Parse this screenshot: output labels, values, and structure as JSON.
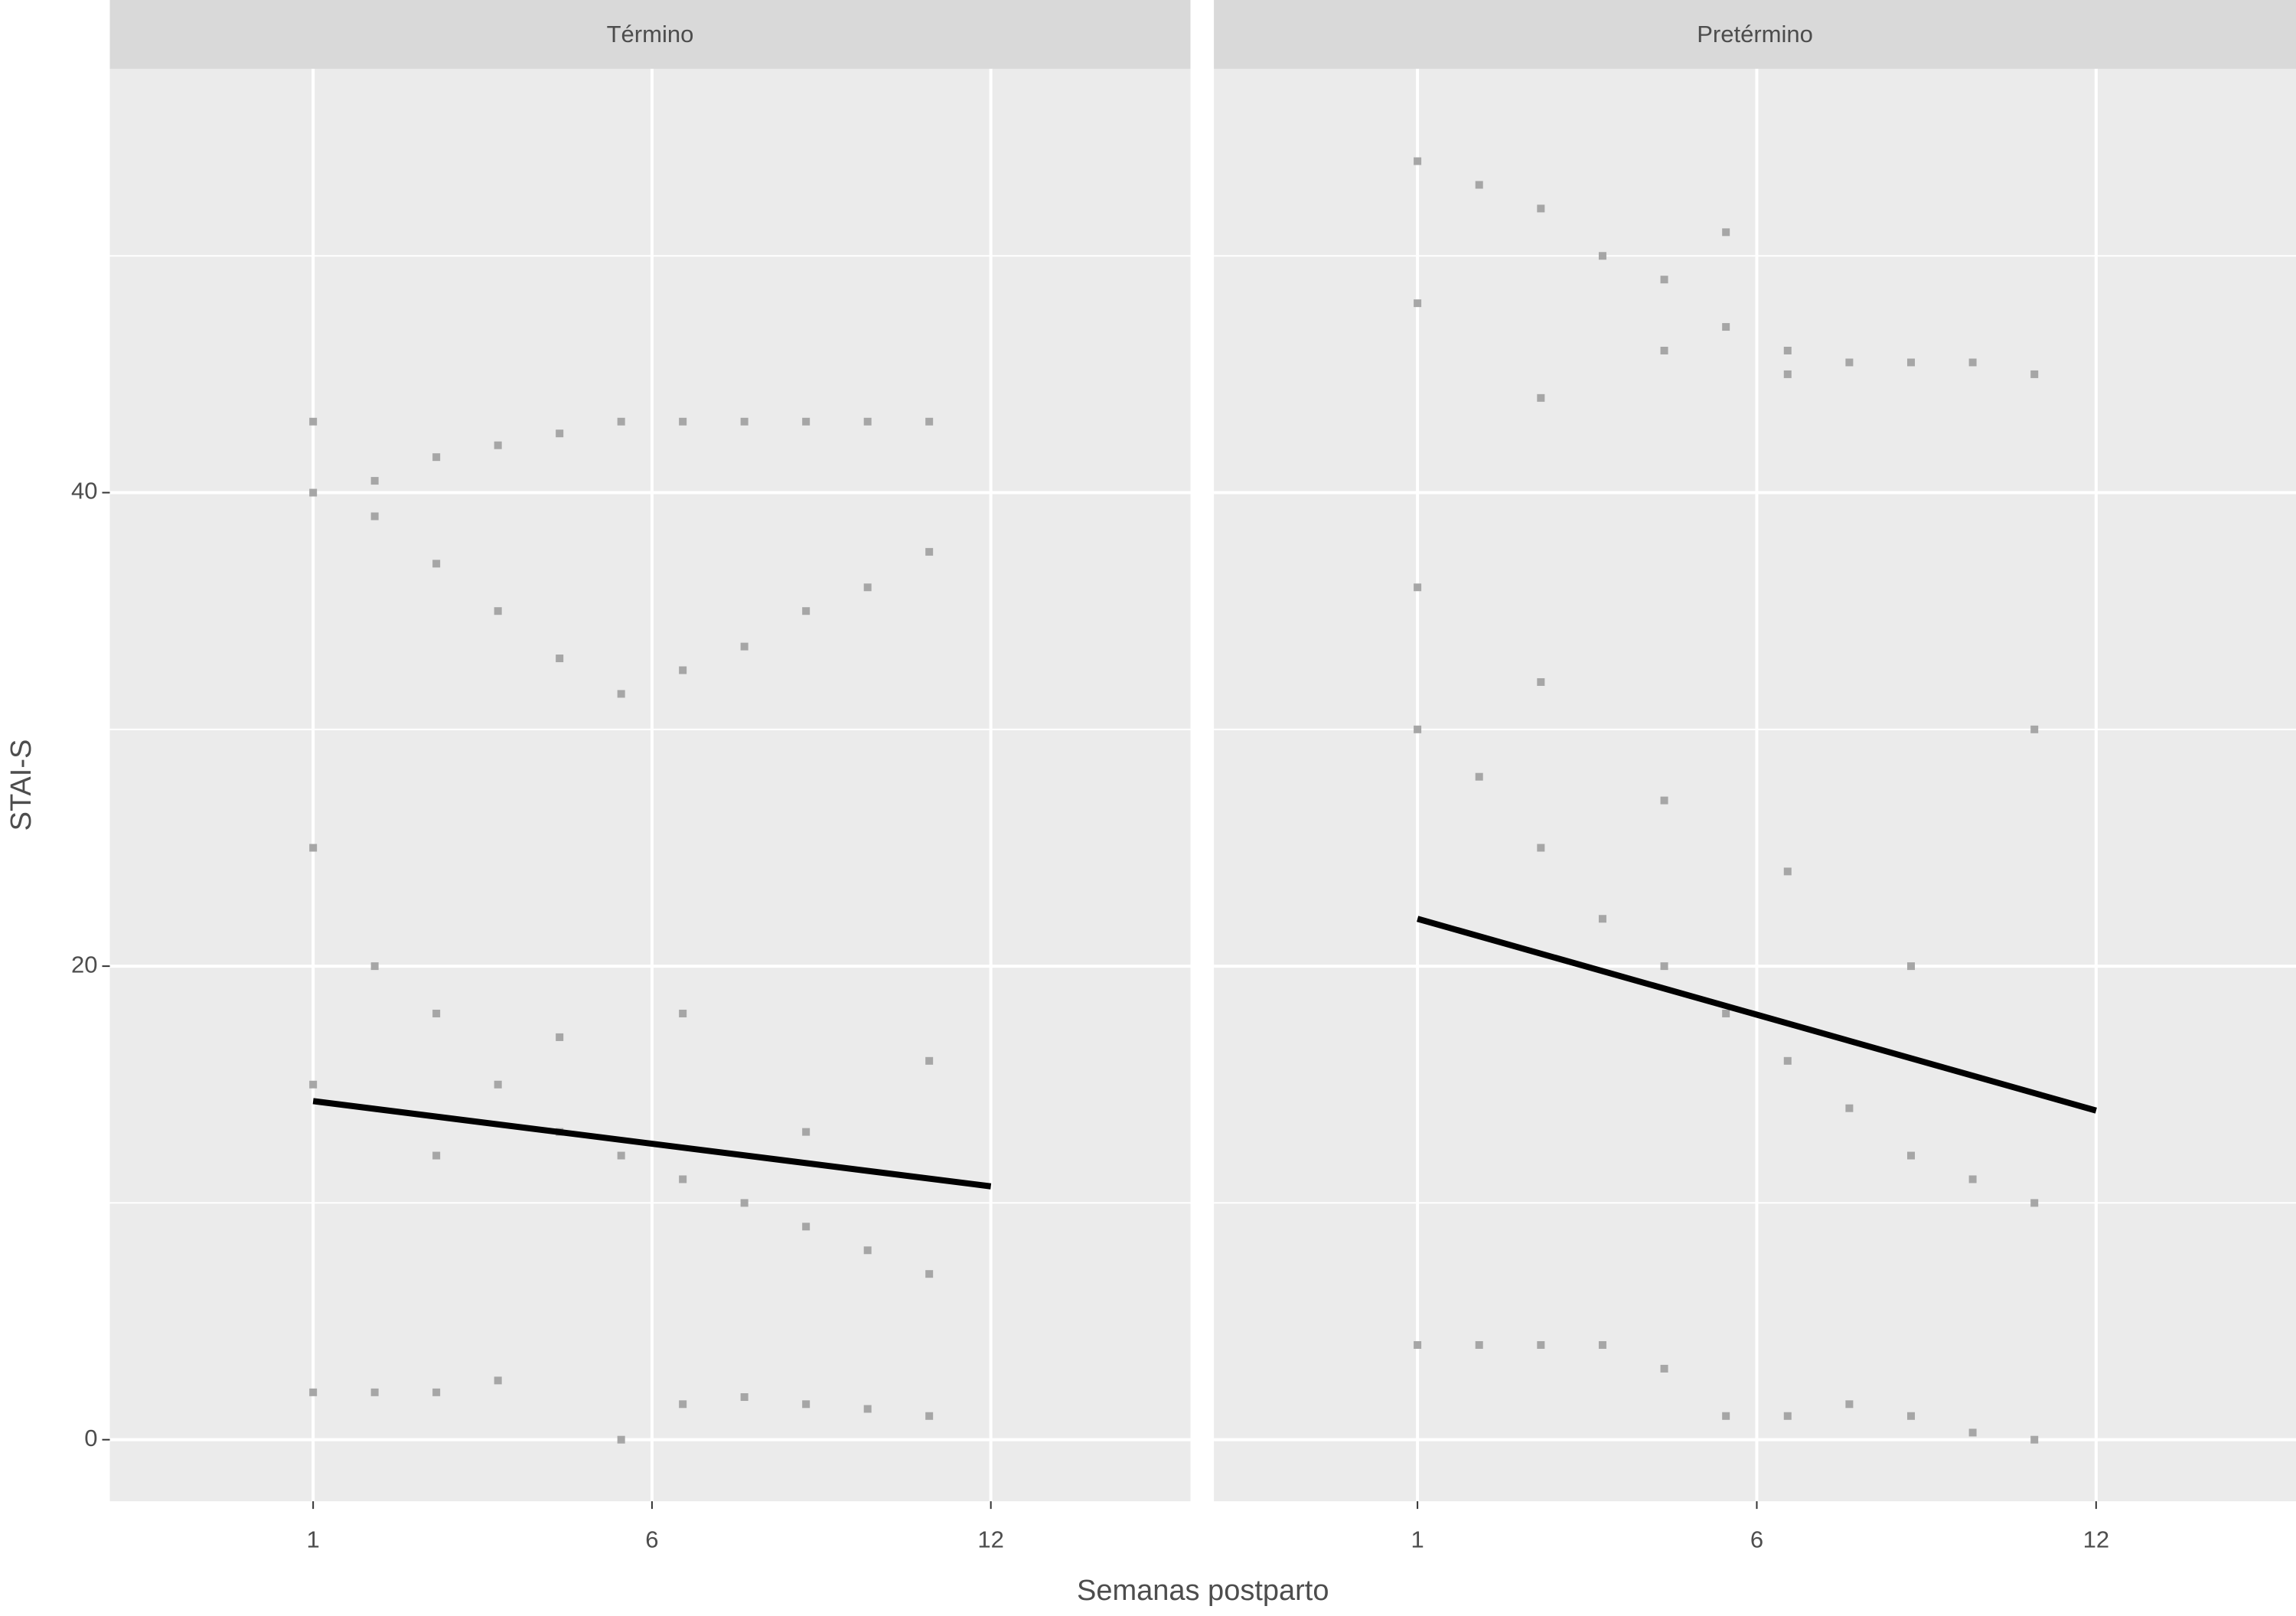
{
  "chart_data": [
    {
      "type": "scatter",
      "title": "Término",
      "xlabel": "Semanas postparto",
      "ylabel": "STAI-S",
      "x": [
        1,
        2,
        3,
        4,
        5,
        6,
        7,
        8,
        9,
        10,
        11,
        1,
        2,
        3,
        4,
        5,
        6,
        7,
        8,
        9,
        10,
        11,
        1,
        2,
        3,
        4,
        6,
        7,
        8,
        9,
        10,
        11,
        1,
        2,
        3,
        4,
        5,
        6,
        7,
        8,
        9,
        10,
        11,
        1,
        3,
        5,
        7,
        9,
        11
      ],
      "y": [
        43,
        40.5,
        41.5,
        42,
        42.5,
        43,
        43,
        43,
        43,
        43,
        43,
        40,
        39,
        37,
        35,
        33,
        31.5,
        32.5,
        33.5,
        35,
        36,
        37.5,
        2,
        2,
        2,
        2.5,
        0,
        1.5,
        1.8,
        1.5,
        1.3,
        1,
        25,
        20,
        18,
        15,
        13,
        12,
        11,
        10,
        9,
        8,
        7,
        15,
        12,
        17,
        18,
        13,
        16
      ],
      "color": "#a6a6a6",
      "trend": {
        "x": [
          1,
          12
        ],
        "y": [
          14.3,
          10.7
        ],
        "color": "#000000"
      },
      "xlim": [
        -2.3,
        15.24
      ],
      "ylim": [
        -2.6,
        57.9
      ],
      "xticks": [
        1,
        {
          "value": 6.5,
          "label": "6"
        },
        12
      ],
      "yticks": [
        0,
        20,
        40
      ],
      "yminor": [
        10,
        30,
        50
      ],
      "grid": true
    },
    {
      "type": "scatter",
      "title": "Pretérmino",
      "x": [
        1,
        2,
        3,
        4,
        5,
        6,
        7,
        8,
        9,
        10,
        11,
        1,
        3,
        5,
        6,
        7,
        1,
        2,
        3,
        4,
        5,
        6,
        7,
        8,
        9,
        10,
        11,
        1,
        2,
        3,
        4,
        5,
        6,
        7,
        8,
        9,
        10,
        11,
        1,
        3,
        5,
        7,
        9,
        11
      ],
      "y": [
        54,
        53,
        52,
        50,
        49,
        47,
        46,
        45.5,
        45.5,
        45.5,
        45,
        48,
        44,
        46,
        51,
        45,
        4,
        4,
        4,
        4,
        3,
        1,
        1,
        1.5,
        1,
        0.3,
        0,
        30,
        28,
        25,
        22,
        20,
        18,
        16,
        14,
        12,
        11,
        10,
        36,
        32,
        27,
        24,
        20,
        30
      ],
      "color": "#a6a6a6",
      "trend": {
        "x": [
          1,
          12
        ],
        "y": [
          22,
          13.9
        ],
        "color": "#000000"
      },
      "xlim": [
        -2.3,
        15.24
      ],
      "ylim": [
        -2.6,
        57.9
      ],
      "xticks": [
        1,
        {
          "value": 6.5,
          "label": "6"
        },
        12
      ],
      "yticks": [
        0,
        20,
        40
      ],
      "yminor": [
        10,
        30,
        50
      ],
      "grid": true
    }
  ]
}
